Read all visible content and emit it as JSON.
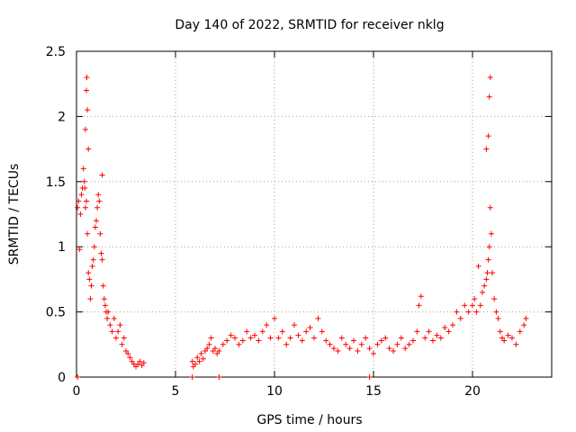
{
  "chart_data": {
    "type": "scatter",
    "title": "Day 140 of 2022, SRMTID for receiver nklg",
    "xlabel": "GPS time / hours",
    "ylabel": "SRMTID / TECUs",
    "xlim": [
      0,
      24
    ],
    "ylim": [
      0,
      2.5
    ],
    "xticks": [
      0,
      5,
      10,
      15,
      20
    ],
    "xtick_labels": [
      "0",
      "5",
      "10",
      "15",
      "20"
    ],
    "yticks": [
      0,
      0.5,
      1,
      1.5,
      2,
      2.5
    ],
    "ytick_labels": [
      "0",
      "0.5",
      "1",
      "1.5",
      "2",
      "2.5"
    ],
    "grid": true,
    "marker": "plus",
    "color": "#ff0000",
    "series": [
      {
        "name": "SRMTID",
        "x": [
          0.05,
          0.1,
          0.15,
          0.2,
          0.25,
          0.3,
          0.35,
          0.4,
          0.45,
          0.5,
          0.55,
          0.6,
          0.65,
          0.7,
          0.75,
          0.8,
          0.85,
          0.9,
          0.95,
          1.0,
          1.05,
          1.1,
          1.15,
          1.2,
          1.25,
          1.3,
          1.35,
          1.4,
          1.45,
          1.5,
          1.55,
          1.6,
          1.7,
          1.8,
          1.9,
          2.0,
          2.1,
          2.2,
          2.3,
          2.4,
          2.5,
          2.6,
          2.7,
          2.8,
          2.9,
          3.0,
          3.1,
          3.2,
          3.3,
          3.4,
          0.5,
          0.55,
          0.45,
          0.6,
          0.52,
          1.3,
          0.42,
          5.85,
          5.9,
          6.0,
          6.1,
          6.2,
          6.3,
          6.4,
          6.5,
          6.6,
          6.7,
          6.8,
          6.9,
          7.0,
          7.1,
          7.2,
          7.4,
          7.6,
          7.8,
          8.0,
          8.2,
          8.4,
          8.6,
          8.8,
          9.0,
          9.2,
          9.4,
          9.6,
          9.8,
          10.0,
          10.2,
          10.4,
          10.6,
          10.8,
          11.0,
          11.2,
          11.4,
          11.6,
          11.8,
          12.0,
          12.2,
          12.4,
          12.6,
          12.8,
          13.0,
          13.2,
          13.4,
          13.6,
          13.8,
          14.0,
          14.2,
          14.4,
          14.6,
          14.8,
          15.0,
          15.2,
          15.4,
          15.6,
          15.8,
          16.0,
          16.2,
          16.4,
          16.6,
          16.8,
          17.0,
          17.2,
          17.3,
          17.4,
          17.6,
          17.8,
          18.0,
          18.2,
          18.4,
          18.6,
          18.8,
          19.0,
          19.2,
          19.4,
          19.6,
          19.8,
          20.0,
          20.1,
          20.2,
          20.3,
          20.4,
          20.5,
          20.6,
          20.7,
          20.75,
          20.8,
          20.85,
          20.9,
          20.95,
          21.0,
          21.1,
          21.2,
          21.3,
          21.4,
          21.5,
          21.6,
          21.8,
          22.0,
          22.2,
          22.4,
          22.6,
          22.7,
          20.85,
          20.8,
          20.9,
          20.7,
          0.05,
          5.85,
          7.2,
          14.8
        ],
        "y": [
          1.3,
          1.35,
          0.98,
          1.25,
          1.4,
          1.45,
          1.6,
          1.5,
          1.3,
          1.35,
          1.1,
          0.8,
          0.75,
          0.6,
          0.7,
          0.85,
          0.9,
          1.0,
          1.15,
          1.2,
          1.3,
          1.4,
          1.35,
          1.1,
          0.95,
          0.9,
          0.7,
          0.6,
          0.55,
          0.5,
          0.45,
          0.5,
          0.4,
          0.35,
          0.45,
          0.3,
          0.35,
          0.4,
          0.25,
          0.3,
          0.2,
          0.18,
          0.15,
          0.12,
          0.1,
          0.08,
          0.1,
          0.12,
          0.09,
          0.11,
          2.2,
          2.05,
          1.9,
          1.75,
          2.3,
          1.55,
          1.45,
          0.12,
          0.08,
          0.1,
          0.15,
          0.12,
          0.18,
          0.14,
          0.2,
          0.22,
          0.25,
          0.3,
          0.2,
          0.22,
          0.18,
          0.2,
          0.25,
          0.28,
          0.32,
          0.3,
          0.25,
          0.28,
          0.35,
          0.3,
          0.32,
          0.28,
          0.35,
          0.4,
          0.3,
          0.45,
          0.3,
          0.35,
          0.25,
          0.3,
          0.4,
          0.32,
          0.28,
          0.35,
          0.38,
          0.3,
          0.45,
          0.35,
          0.28,
          0.25,
          0.22,
          0.2,
          0.3,
          0.25,
          0.22,
          0.28,
          0.2,
          0.25,
          0.3,
          0.22,
          0.18,
          0.25,
          0.28,
          0.3,
          0.22,
          0.2,
          0.25,
          0.3,
          0.22,
          0.25,
          0.28,
          0.35,
          0.55,
          0.62,
          0.3,
          0.35,
          0.28,
          0.32,
          0.3,
          0.38,
          0.35,
          0.4,
          0.5,
          0.45,
          0.55,
          0.5,
          0.55,
          0.6,
          0.5,
          0.85,
          0.55,
          0.65,
          0.7,
          0.75,
          0.8,
          0.9,
          1.0,
          1.3,
          1.1,
          0.8,
          0.6,
          0.5,
          0.45,
          0.35,
          0.3,
          0.28,
          0.32,
          0.3,
          0.25,
          0.35,
          0.4,
          0.45,
          2.15,
          1.85,
          2.3,
          1.75,
          0.0,
          0.0,
          0.0,
          0.0
        ]
      }
    ]
  }
}
